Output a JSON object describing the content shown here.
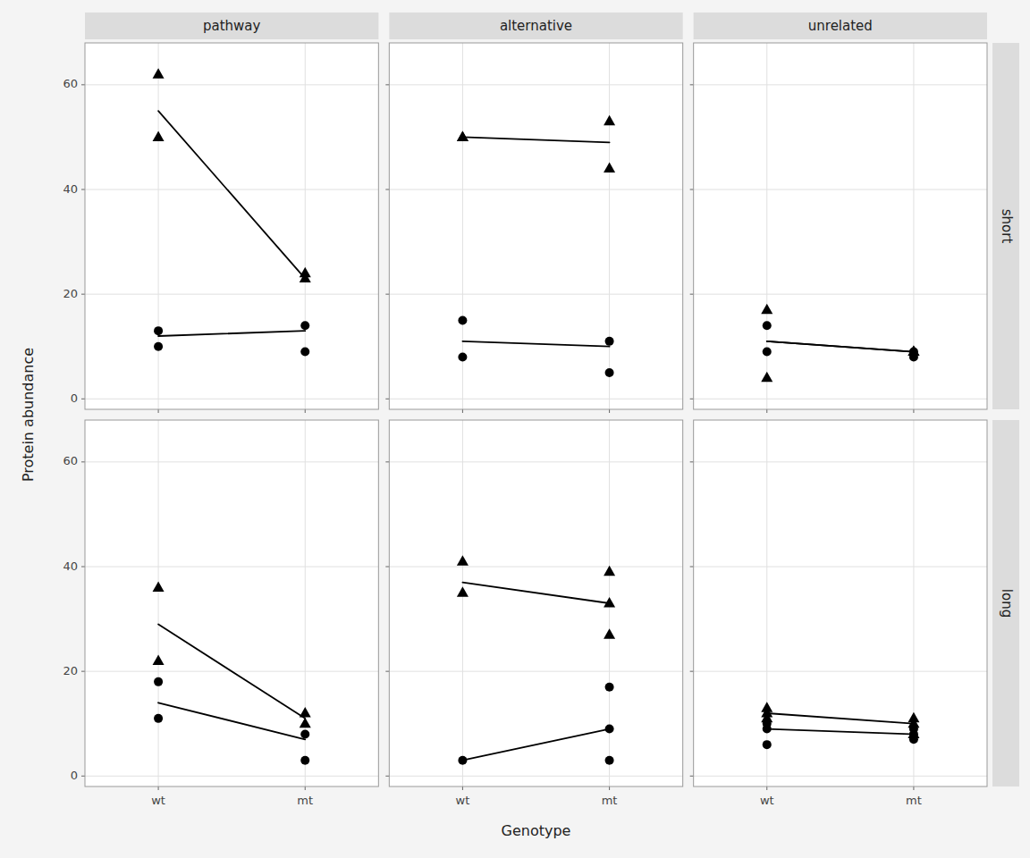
{
  "chart_data": [
    {
      "type": "scatter",
      "title": "pathway",
      "ylabel": "Protein abundance",
      "categories": [
        "wt",
        "mt"
      ],
      "ylim": [
        -2,
        68
      ],
      "yticks": [
        0,
        20,
        40,
        60
      ],
      "grid": true,
      "tick_labels": "y",
      "series": [
        {
          "type": "scatter",
          "marker": "circle",
          "color": "#000000",
          "x": [
            "wt",
            "wt",
            "mt",
            "mt"
          ],
          "values": [
            10,
            13,
            9,
            14
          ]
        },
        {
          "type": "scatter",
          "marker": "triangle",
          "color": "#000000",
          "x": [
            "wt",
            "wt",
            "mt",
            "mt"
          ],
          "values": [
            50,
            62,
            23,
            24
          ]
        },
        {
          "type": "line",
          "line_style": "solid",
          "color": "#000000",
          "x": [
            "wt",
            "mt"
          ],
          "values": [
            12,
            13
          ]
        },
        {
          "type": "line",
          "line_style": "solid",
          "color": "#000000",
          "x": [
            "wt",
            "mt"
          ],
          "values": [
            55,
            23
          ]
        }
      ]
    },
    {
      "type": "scatter",
      "title": "alternative",
      "categories": [
        "wt",
        "mt"
      ],
      "ylim": [
        -2,
        68
      ],
      "yticks": [
        0,
        20,
        40,
        60
      ],
      "grid": true,
      "tick_labels": false,
      "series": [
        {
          "type": "scatter",
          "marker": "circle",
          "color": "#000000",
          "x": [
            "wt",
            "wt",
            "mt",
            "mt"
          ],
          "values": [
            8,
            15,
            5,
            11
          ]
        },
        {
          "type": "scatter",
          "marker": "triangle",
          "color": "#000000",
          "x": [
            "wt",
            "wt",
            "mt",
            "mt"
          ],
          "values": [
            50,
            50,
            44,
            53
          ]
        },
        {
          "type": "line",
          "line_style": "solid",
          "color": "#000000",
          "x": [
            "wt",
            "mt"
          ],
          "values": [
            11,
            10
          ]
        },
        {
          "type": "line",
          "line_style": "solid",
          "color": "#000000",
          "x": [
            "wt",
            "mt"
          ],
          "values": [
            50,
            49
          ]
        }
      ]
    },
    {
      "type": "scatter",
      "title": "unrelated",
      "subtitle": "short",
      "categories": [
        "wt",
        "mt"
      ],
      "ylim": [
        -2,
        68
      ],
      "yticks": [
        0,
        20,
        40,
        60
      ],
      "grid": true,
      "tick_labels": false,
      "series": [
        {
          "type": "scatter",
          "marker": "circle",
          "color": "#000000",
          "x": [
            "wt",
            "wt",
            "mt",
            "mt"
          ],
          "values": [
            9,
            14,
            8,
            9
          ]
        },
        {
          "type": "scatter",
          "marker": "triangle",
          "color": "#000000",
          "x": [
            "wt",
            "wt",
            "mt",
            "mt"
          ],
          "values": [
            4,
            17,
            9,
            9
          ]
        },
        {
          "type": "line",
          "line_style": "solid",
          "color": "#000000",
          "x": [
            "wt",
            "mt"
          ],
          "values": [
            11,
            9
          ]
        },
        {
          "type": "line",
          "line_style": "solid",
          "color": "#000000",
          "x": [
            "wt",
            "mt"
          ],
          "values": [
            11,
            9
          ]
        }
      ]
    },
    {
      "type": "scatter",
      "categories": [
        "wt",
        "mt"
      ],
      "ylim": [
        -2,
        68
      ],
      "yticks": [
        0,
        20,
        40,
        60
      ],
      "grid": true,
      "tick_labels": true,
      "series": [
        {
          "type": "scatter",
          "marker": "circle",
          "color": "#000000",
          "x": [
            "wt",
            "wt",
            "mt",
            "mt"
          ],
          "values": [
            11,
            18,
            3,
            8
          ]
        },
        {
          "type": "scatter",
          "marker": "triangle",
          "color": "#000000",
          "x": [
            "wt",
            "wt",
            "mt",
            "mt"
          ],
          "values": [
            22,
            36,
            10,
            12
          ]
        },
        {
          "type": "line",
          "line_style": "solid",
          "color": "#000000",
          "x": [
            "wt",
            "mt"
          ],
          "values": [
            14,
            7
          ]
        },
        {
          "type": "line",
          "line_style": "solid",
          "color": "#000000",
          "x": [
            "wt",
            "mt"
          ],
          "values": [
            29,
            11
          ]
        }
      ]
    },
    {
      "type": "scatter",
      "xlabel": "Genotype",
      "categories": [
        "wt",
        "mt"
      ],
      "ylim": [
        -2,
        68
      ],
      "yticks": [
        0,
        20,
        40,
        60
      ],
      "grid": true,
      "tick_labels": "x",
      "series": [
        {
          "type": "scatter",
          "marker": "circle",
          "color": "#000000",
          "x": [
            "wt",
            "mt",
            "mt",
            "mt"
          ],
          "values": [
            3,
            3,
            9,
            17
          ]
        },
        {
          "type": "scatter",
          "marker": "triangle",
          "color": "#000000",
          "x": [
            "wt",
            "wt",
            "mt",
            "mt",
            "mt"
          ],
          "values": [
            35,
            41,
            27,
            33,
            39
          ]
        },
        {
          "type": "line",
          "line_style": "solid",
          "color": "#000000",
          "x": [
            "wt",
            "mt"
          ],
          "values": [
            3,
            9
          ]
        },
        {
          "type": "line",
          "line_style": "solid",
          "color": "#000000",
          "x": [
            "wt",
            "mt"
          ],
          "values": [
            37,
            33
          ]
        }
      ]
    },
    {
      "type": "scatter",
      "subtitle": "long",
      "categories": [
        "wt",
        "mt"
      ],
      "ylim": [
        -2,
        68
      ],
      "yticks": [
        0,
        20,
        40,
        60
      ],
      "grid": true,
      "tick_labels": "x",
      "series": [
        {
          "type": "scatter",
          "marker": "circle",
          "color": "#000000",
          "x": [
            "wt",
            "wt",
            "wt",
            "mt",
            "mt",
            "mt"
          ],
          "values": [
            6,
            9,
            10,
            7,
            8,
            9
          ]
        },
        {
          "type": "scatter",
          "marker": "triangle",
          "color": "#000000",
          "x": [
            "wt",
            "wt",
            "wt",
            "mt",
            "mt",
            "mt"
          ],
          "values": [
            11,
            12,
            13,
            8,
            10,
            11
          ]
        },
        {
          "type": "line",
          "line_style": "solid",
          "color": "#000000",
          "x": [
            "wt",
            "mt"
          ],
          "values": [
            9,
            8
          ]
        },
        {
          "type": "line",
          "line_style": "solid",
          "color": "#000000",
          "x": [
            "wt",
            "mt"
          ],
          "values": [
            12,
            10
          ]
        }
      ]
    }
  ]
}
